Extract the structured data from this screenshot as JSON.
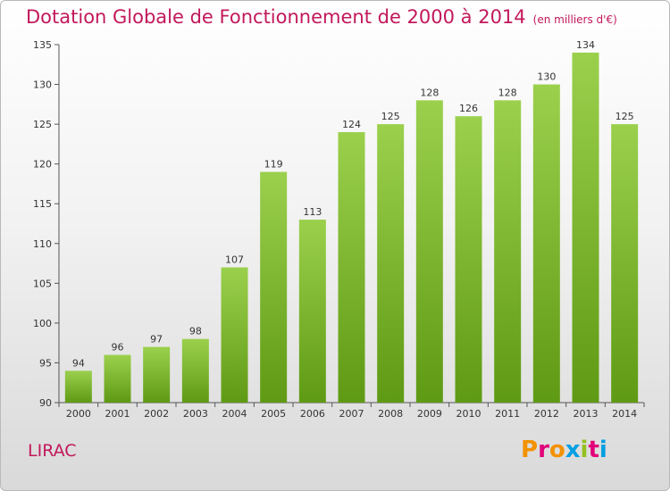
{
  "header": {
    "title": "Dotation Globale de Fonctionnement de 2000 à 2014",
    "subtitle": "(en milliers d'€)"
  },
  "footer": {
    "commune": "LIRAC",
    "logo_text": "Proxiti",
    "logo_colors": [
      "#f39200",
      "#e2007a",
      "#f39200",
      "#009fe3",
      "#95c11f",
      "#e2007a",
      "#009fe3"
    ]
  },
  "chart_data": {
    "type": "bar",
    "title": "Dotation Globale de Fonctionnement de 2000 à 2014",
    "subtitle": "(en milliers d'€)",
    "xlabel": "",
    "ylabel": "",
    "categories": [
      "2000",
      "2001",
      "2002",
      "2003",
      "2004",
      "2005",
      "2006",
      "2007",
      "2008",
      "2009",
      "2010",
      "2011",
      "2012",
      "2013",
      "2014"
    ],
    "values": [
      94,
      96,
      97,
      98,
      107,
      119,
      113,
      124,
      125,
      128,
      126,
      128,
      130,
      134,
      125
    ],
    "ylim": [
      90,
      135
    ],
    "yticks": [
      90,
      95,
      100,
      105,
      110,
      115,
      120,
      125,
      130,
      135
    ],
    "grid": false,
    "bar_color_top": "#9bd04d",
    "bar_color_bottom": "#5f9a14"
  }
}
